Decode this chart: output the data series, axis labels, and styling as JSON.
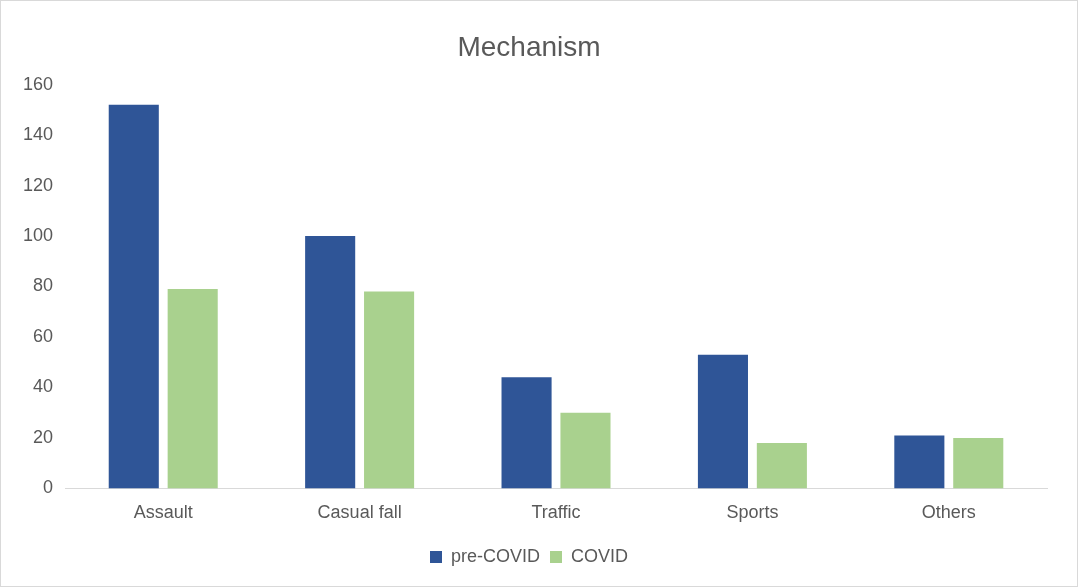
{
  "chart_data": {
    "type": "bar",
    "title": "Mechanism",
    "categories": [
      "Assault",
      "Casual fall",
      "Traffic",
      "Sports",
      "Others"
    ],
    "series": [
      {
        "name": "pre-COVID",
        "color": "#2f5597",
        "values": [
          152,
          100,
          44,
          53,
          21
        ]
      },
      {
        "name": "COVID",
        "color": "#a9d18e",
        "values": [
          79,
          78,
          30,
          18,
          20
        ]
      }
    ],
    "ylim": [
      0,
      160
    ],
    "yticks": [
      0,
      20,
      40,
      60,
      80,
      100,
      120,
      140,
      160
    ],
    "grid": false,
    "legend": "bottom"
  }
}
